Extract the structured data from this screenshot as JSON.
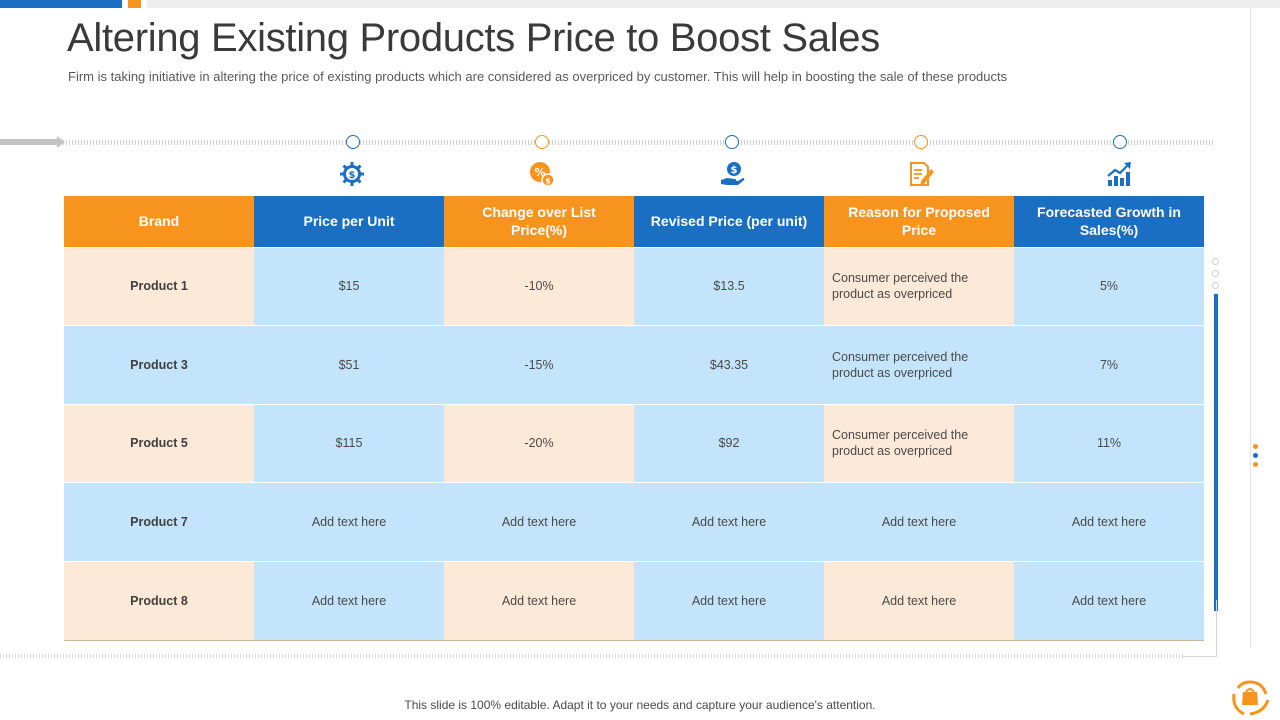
{
  "slide": {
    "title": "Altering Existing Products Price to Boost Sales",
    "subtitle": "Firm is taking initiative in altering the price of existing products which are considered as overpriced by customer. This will help in boosting the sale of these products",
    "footer": "This slide is 100% editable. Adapt it to your needs and capture your audience's attention."
  },
  "colors": {
    "orange": "#f7941d",
    "blue": "#1b6fc2",
    "peach": "#fde9d7",
    "light_blue": "#c3e4fb"
  },
  "column_icons": [
    "dollar-gear-icon",
    "percent-coin-icon",
    "hand-dollar-icon",
    "document-pen-icon",
    "growth-chart-icon"
  ],
  "table": {
    "headers": [
      "Brand",
      "Price per Unit",
      "Change over List Price(%)",
      "Revised Price (per unit)",
      "Reason for Proposed Price",
      "Forecasted Growth in Sales(%)"
    ],
    "rows": [
      [
        "Product 1",
        "$15",
        "-10%",
        "$13.5",
        "Consumer perceived the product as overpriced",
        "5%"
      ],
      [
        "Product 3",
        "$51",
        "-15%",
        "$43.35",
        "Consumer perceived the product as overpriced",
        "7%"
      ],
      [
        "Product 5",
        "$115",
        "-20%",
        "$92",
        "Consumer perceived the product as overpriced",
        "11%"
      ],
      [
        "Product 7",
        "Add text here",
        "Add text here",
        "Add text here",
        "Add text here",
        "Add text here"
      ],
      [
        "Product 8",
        "Add text here",
        "Add text here",
        "Add text here",
        "Add text here",
        "Add text here"
      ]
    ]
  }
}
